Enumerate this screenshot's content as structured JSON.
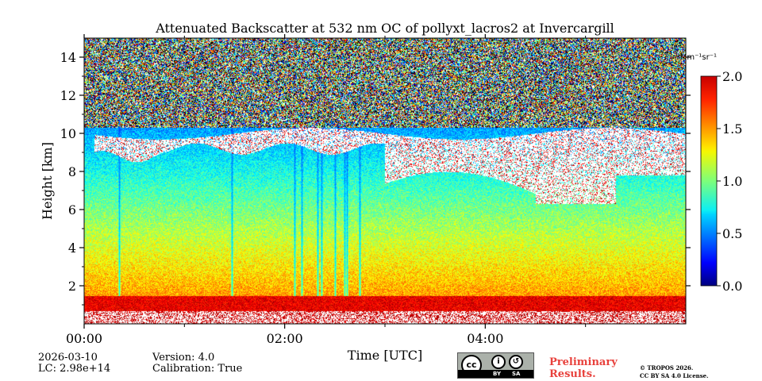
{
  "chart_data": {
    "type": "heatmap",
    "title": "Attenuated Backscatter at 532 nm OC of pollyxt_lacros2 at Invercargill",
    "xlabel": "Time [UTC]",
    "ylabel": "Height [km]",
    "xlim": [
      0,
      6
    ],
    "ylim": [
      0,
      15
    ],
    "x_ticks": [
      0,
      2,
      4
    ],
    "x_tick_labels": [
      "00:00",
      "02:00",
      "04:00"
    ],
    "x_minor_ticks": [
      1,
      3,
      5
    ],
    "y_ticks": [
      2,
      4,
      6,
      8,
      10,
      12,
      14
    ],
    "y_tick_labels": [
      "2",
      "4",
      "6",
      "8",
      "10",
      "12",
      "14"
    ],
    "colorbar": {
      "unit_label": "Mm⁻¹sr⁻¹",
      "range": [
        0.0,
        2.0
      ],
      "ticks": [
        0.0,
        0.5,
        1.0,
        1.5,
        2.0
      ],
      "tick_labels": [
        "0.0",
        "0.5",
        "1.0",
        "1.5",
        "2.0"
      ],
      "colormap": "jet"
    },
    "features": {
      "noise_above_km": 10.3,
      "boundary_layer_top_km": 1.5,
      "cloud_layer_km": [
        6.0,
        10.0
      ],
      "vertical_streak_hours": [
        0.35,
        1.47,
        2.1,
        2.17,
        2.33,
        2.37,
        2.5,
        2.6,
        2.62,
        2.75
      ]
    }
  },
  "info": {
    "date": "2026-03-10",
    "lc": "LC: 2.98e+14",
    "version": "Version: 4.0",
    "calibration": "Calibration: True"
  },
  "license": {
    "cc": "cc",
    "by": "BY",
    "sa": "SA",
    "preliminary_line1": "Preliminary",
    "preliminary_line2": "Results.",
    "copyright_line1": "© TROPOS 2026.",
    "copyright_line2": "CC BY SA 4.0 License."
  },
  "colors": {
    "preliminary": "#e8413c",
    "badge_bg": "#abb1aa"
  }
}
